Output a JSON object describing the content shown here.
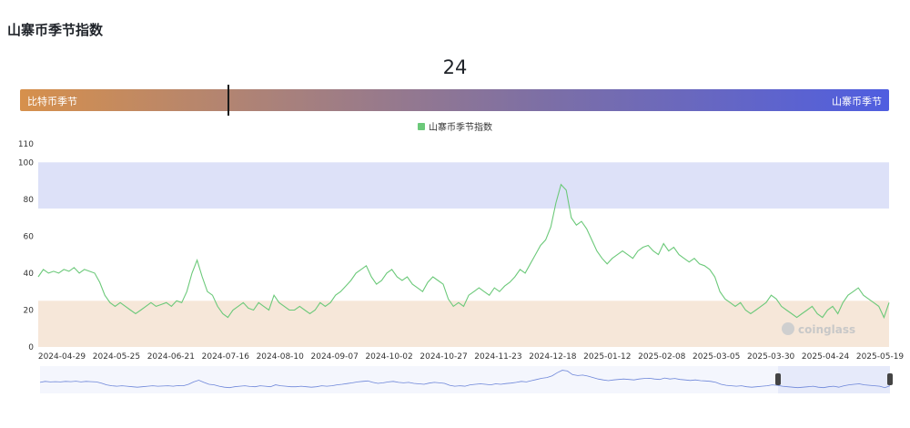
{
  "page": {
    "title": "山寨币季节指数"
  },
  "gauge": {
    "value": "24",
    "value_num": 24,
    "left_label": "比特币季节",
    "right_label": "山寨币季节"
  },
  "watermark": "coinglass",
  "colors": {
    "line": "#6cc97a",
    "altcoin_band": "#dde1f8",
    "bitcoin_band": "#f6e7d9",
    "navigator_line": "#6d86d9",
    "navigator_fill": "#e6eafa"
  },
  "chart_data": {
    "type": "line",
    "title": "",
    "xlabel": "",
    "ylabel": "",
    "ylim": [
      0,
      110
    ],
    "y_ticks": [
      "0",
      "20",
      "40",
      "60",
      "80",
      "100",
      "110"
    ],
    "x_ticks": [
      "2024-04-29",
      "2024-05-25",
      "2024-06-21",
      "2024-07-16",
      "2024-08-10",
      "2024-09-07",
      "2024-10-02",
      "2024-10-27",
      "2024-11-23",
      "2024-12-18",
      "2025-01-12",
      "2025-02-08",
      "2025-03-05",
      "2025-03-30",
      "2025-04-24",
      "2025-05-19"
    ],
    "legend": {
      "position": "top-center",
      "entries": [
        "山寨币季节指数"
      ]
    },
    "bands": [
      {
        "from": 75,
        "to": 100
      },
      {
        "from": 0,
        "to": 25
      }
    ],
    "series": [
      {
        "name": "山寨币季节指数",
        "x_start": "2024-04-29",
        "x_end": "2025-05-19",
        "values": [
          38,
          42,
          40,
          41,
          40,
          42,
          41,
          43,
          40,
          42,
          41,
          40,
          35,
          28,
          24,
          22,
          24,
          22,
          20,
          18,
          20,
          22,
          24,
          22,
          23,
          24,
          22,
          25,
          24,
          30,
          40,
          47,
          38,
          30,
          28,
          22,
          18,
          16,
          20,
          22,
          24,
          21,
          20,
          24,
          22,
          20,
          28,
          24,
          22,
          20,
          20,
          22,
          20,
          18,
          20,
          24,
          22,
          24,
          28,
          30,
          33,
          36,
          40,
          42,
          44,
          38,
          34,
          36,
          40,
          42,
          38,
          36,
          38,
          34,
          32,
          30,
          35,
          38,
          36,
          34,
          26,
          22,
          24,
          22,
          28,
          30,
          32,
          30,
          28,
          32,
          30,
          33,
          35,
          38,
          42,
          40,
          45,
          50,
          55,
          58,
          65,
          78,
          88,
          85,
          70,
          66,
          68,
          64,
          58,
          52,
          48,
          45,
          48,
          50,
          52,
          50,
          48,
          52,
          54,
          55,
          52,
          50,
          56,
          52,
          54,
          50,
          48,
          46,
          48,
          45,
          44,
          42,
          38,
          30,
          26,
          24,
          22,
          24,
          20,
          18,
          20,
          22,
          24,
          28,
          26,
          22,
          20,
          18,
          16,
          18,
          20,
          22,
          18,
          16,
          20,
          22,
          18,
          24,
          28,
          30,
          32,
          28,
          26,
          24,
          22,
          16,
          24
        ]
      }
    ]
  }
}
